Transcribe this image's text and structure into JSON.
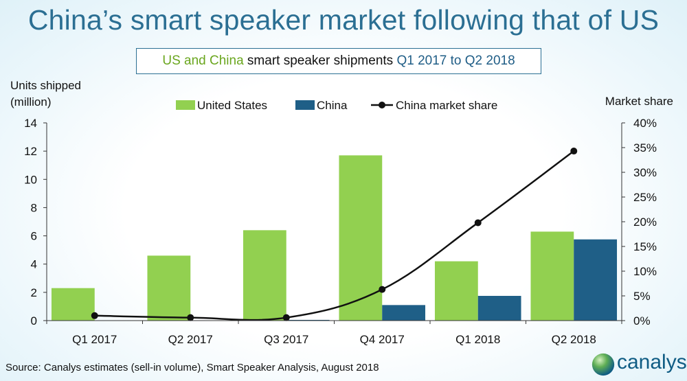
{
  "headline": "China’s smart speaker market following that of US",
  "subtitle": {
    "part1": "US and China",
    "part2": " smart speaker shipments ",
    "part3": "Q1 2017 to Q2 2018"
  },
  "source": "Source: Canalys estimates (sell-in volume), Smart Speaker Analysis, August 2018",
  "logo_text": "canalys",
  "colors": {
    "us": "#92d050",
    "china": "#1f5f87",
    "share": "#111111",
    "headline": "#2b6f93"
  },
  "chart_data": {
    "type": "bar",
    "categories": [
      "Q1 2017",
      "Q2 2017",
      "Q3 2017",
      "Q4 2017",
      "Q1 2018",
      "Q2 2018"
    ],
    "series": [
      {
        "name": "United States",
        "type": "bar",
        "axis": "left",
        "values": [
          2.3,
          4.6,
          6.4,
          11.7,
          4.2,
          6.3
        ]
      },
      {
        "name": "China",
        "type": "bar",
        "axis": "left",
        "values": [
          0.02,
          0.02,
          0.05,
          1.1,
          1.75,
          5.75
        ]
      },
      {
        "name": "China market share",
        "type": "line",
        "axis": "right",
        "values": [
          1.0,
          0.6,
          0.6,
          6.3,
          19.8,
          34.3
        ]
      }
    ],
    "ylabel": [
      "Units shipped",
      "(million)"
    ],
    "y2label": "Market share",
    "ylim": [
      0,
      14
    ],
    "yticks": [
      0,
      2,
      4,
      6,
      8,
      10,
      12,
      14
    ],
    "y2lim": [
      0,
      40
    ],
    "y2ticks": [
      "0%",
      "5%",
      "10%",
      "15%",
      "20%",
      "25%",
      "30%",
      "35%",
      "40%"
    ],
    "legend_position": "top"
  }
}
